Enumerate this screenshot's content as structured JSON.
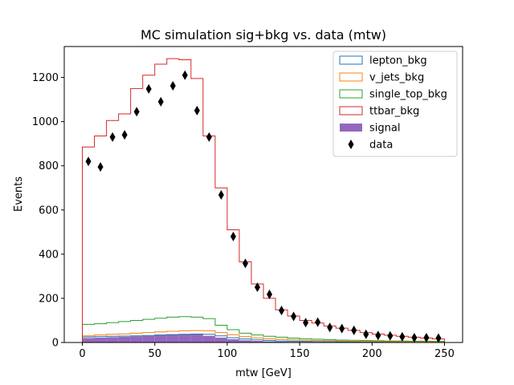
{
  "chart_data": {
    "type": "histogram",
    "title": "MC simulation sig+bkg vs. data (mtw)",
    "xlabel": "mtw [GeV]",
    "ylabel": "Events",
    "xlim": [
      -12.5,
      262.5
    ],
    "ylim": [
      0,
      1340
    ],
    "xticks": [
      0,
      50,
      100,
      150,
      200,
      250
    ],
    "yticks": [
      0,
      200,
      400,
      600,
      800,
      1000,
      1200
    ],
    "legend_position": "top-right",
    "grid": false,
    "bin_edges": [
      0,
      8.33,
      16.67,
      25,
      33.33,
      41.67,
      50,
      58.33,
      66.67,
      75,
      83.33,
      91.67,
      100,
      108.33,
      116.67,
      125,
      133.33,
      141.67,
      150,
      158.33,
      166.67,
      175,
      183.33,
      191.67,
      200,
      208.33,
      216.67,
      225,
      233.33,
      241.67,
      250
    ],
    "series": [
      {
        "name": "lepton_bkg",
        "kind": "step",
        "color": "#1f77b4",
        "values": [
          25,
          27,
          28,
          29,
          30,
          32,
          34,
          36,
          37,
          38,
          37,
          30,
          22,
          16,
          12,
          9,
          7,
          6,
          5,
          4,
          4,
          3,
          3,
          2,
          2,
          2,
          2,
          1,
          1,
          1
        ]
      },
      {
        "name": "v_jets_bkg",
        "kind": "step",
        "color": "#ff7f0e",
        "values": [
          30,
          34,
          37,
          39,
          42,
          45,
          48,
          51,
          53,
          54,
          53,
          45,
          35,
          27,
          21,
          17,
          14,
          12,
          10,
          9,
          8,
          7,
          6,
          5,
          5,
          4,
          4,
          3,
          3,
          3
        ]
      },
      {
        "name": "single_top_bkg",
        "kind": "step",
        "color": "#2ca02c",
        "values": [
          82,
          85,
          90,
          95,
          100,
          105,
          110,
          115,
          117,
          115,
          108,
          78,
          58,
          42,
          34,
          28,
          24,
          20,
          17,
          15,
          13,
          11,
          10,
          9,
          8,
          7,
          7,
          6,
          6,
          5
        ]
      },
      {
        "name": "ttbar_bkg",
        "kind": "step",
        "color": "#d62728",
        "values": [
          885,
          935,
          1005,
          1035,
          1150,
          1210,
          1260,
          1285,
          1280,
          1195,
          935,
          700,
          510,
          365,
          265,
          200,
          148,
          120,
          100,
          88,
          75,
          65,
          55,
          45,
          38,
          33,
          28,
          24,
          20,
          16
        ]
      },
      {
        "name": "signal",
        "kind": "filled",
        "color": "#9467bd",
        "values": [
          20,
          22,
          24,
          26,
          28,
          30,
          33,
          35,
          37,
          38,
          30,
          22,
          15,
          10,
          7,
          5,
          4,
          3,
          3,
          2,
          2,
          2,
          1,
          1,
          1,
          1,
          1,
          1,
          1,
          1
        ]
      },
      {
        "name": "data",
        "kind": "points",
        "color": "#000000",
        "x": [
          4.17,
          12.5,
          20.83,
          29.17,
          37.5,
          45.83,
          54.17,
          62.5,
          70.83,
          79.17,
          87.5,
          95.83,
          104.17,
          112.5,
          120.83,
          129.17,
          137.5,
          145.83,
          154.17,
          162.5,
          170.83,
          179.17,
          187.5,
          195.83,
          204.17,
          212.5,
          220.83,
          229.17,
          237.5,
          245.83
        ],
        "values": [
          820,
          795,
          930,
          940,
          1045,
          1148,
          1090,
          1162,
          1210,
          1050,
          930,
          668,
          480,
          358,
          250,
          218,
          145,
          118,
          90,
          92,
          68,
          63,
          55,
          37,
          32,
          30,
          26,
          22,
          22,
          20
        ]
      }
    ]
  }
}
